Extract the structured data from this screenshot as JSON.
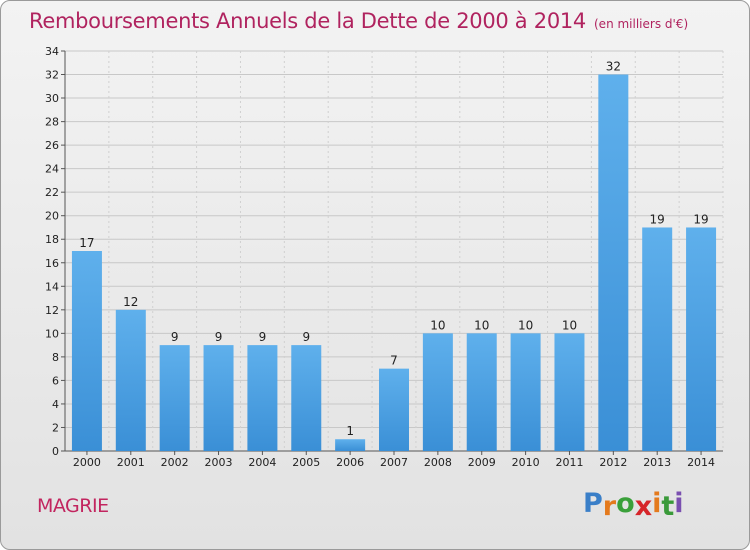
{
  "chart_data": {
    "type": "bar",
    "title": "Remboursements Annuels de la Dette de 2000 à 2014",
    "subtitle": "(en milliers d'€)",
    "categories": [
      "2000",
      "2001",
      "2002",
      "2003",
      "2004",
      "2005",
      "2006",
      "2007",
      "2008",
      "2009",
      "2010",
      "2011",
      "2012",
      "2013",
      "2014"
    ],
    "values": [
      17,
      12,
      9,
      9,
      9,
      9,
      1,
      7,
      10,
      10,
      10,
      10,
      32,
      19,
      19
    ],
    "ylim": [
      0,
      34
    ],
    "yticks": [
      0,
      2,
      4,
      6,
      8,
      10,
      12,
      14,
      16,
      18,
      20,
      22,
      24,
      26,
      28,
      30,
      32,
      34
    ],
    "grid": true,
    "bar_color": "#3a8fd6",
    "bar_color_light": "#5fb0ec"
  },
  "footer": {
    "commune": "MAGRIE",
    "brand": [
      "P",
      "r",
      "o",
      "x",
      "i",
      "t",
      "i"
    ],
    "brand_colors": [
      "#3a7fc8",
      "#e47a1d",
      "#3aa03a",
      "#d6252a",
      "#e47a1d",
      "#3a9a3a",
      "#7a4fb0"
    ]
  }
}
